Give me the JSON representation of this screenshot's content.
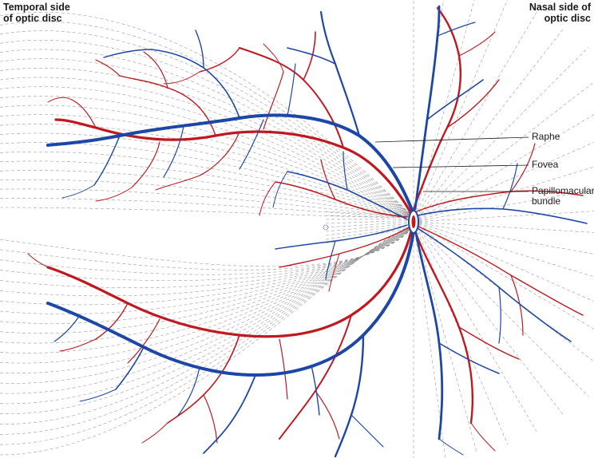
{
  "labels": {
    "temporal_side": "Temporal side\nof optic disc",
    "nasal_side": "Nasal side of\noptic disc",
    "raphe": "Raphe",
    "fovea": "Fovea",
    "papillomacular_bundle": "Papillomacular\nbundle"
  },
  "colors": {
    "artery": "#c0181f",
    "vein": "#1d47a6",
    "nerve_fiber": "#8a8a8a",
    "background": "#ffffff"
  }
}
